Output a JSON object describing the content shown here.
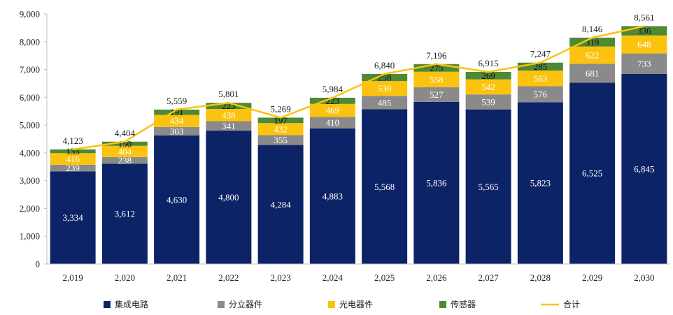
{
  "chart_data": {
    "type": "bar",
    "stacked": true,
    "categories": [
      "2,019",
      "2,020",
      "2,021",
      "2,022",
      "2,023",
      "2,024",
      "2,025",
      "2,026",
      "2,027",
      "2,028",
      "2,029",
      "2,030"
    ],
    "series": [
      {
        "name": "集成电路",
        "color": "#0d2367",
        "label_color": "#ffffff",
        "values": [
          3334,
          3612,
          4630,
          4800,
          4284,
          4883,
          5568,
          5836,
          5565,
          5823,
          6525,
          6845
        ]
      },
      {
        "name": "分立器件",
        "color": "#8a8a8a",
        "label_color": "#ffffff",
        "values": [
          239,
          238,
          303,
          341,
          355,
          410,
          485,
          527,
          539,
          576,
          681,
          733
        ]
      },
      {
        "name": "光电器件",
        "color": "#fcc30e",
        "label_color": "#ffffff",
        "values": [
          416,
          404,
          434,
          438,
          432,
          469,
          530,
          558,
          542,
          563,
          622,
          648
        ]
      },
      {
        "name": "传感器",
        "color": "#4e8a34",
        "label_color": "#111111",
        "values": [
          135,
          150,
          191,
          223,
          197,
          223,
          258,
          275,
          269,
          285,
          319,
          336
        ]
      }
    ],
    "line": {
      "name": "合计",
      "color": "#fcc30e",
      "values": [
        4123,
        4404,
        5559,
        5801,
        5269,
        5984,
        6840,
        7196,
        6915,
        7247,
        8146,
        8561
      ]
    },
    "ylim": [
      0,
      9000
    ],
    "yticks": [
      0,
      1000,
      2000,
      3000,
      4000,
      5000,
      6000,
      7000,
      8000,
      9000
    ],
    "ytick_labels": [
      "0",
      "1,000",
      "2,000",
      "3,000",
      "4,000",
      "5,000",
      "6,000",
      "7,000",
      "8,000",
      "9,000"
    ],
    "title": "",
    "xlabel": "",
    "ylabel": "",
    "grid": false,
    "legend_position": "bottom"
  }
}
